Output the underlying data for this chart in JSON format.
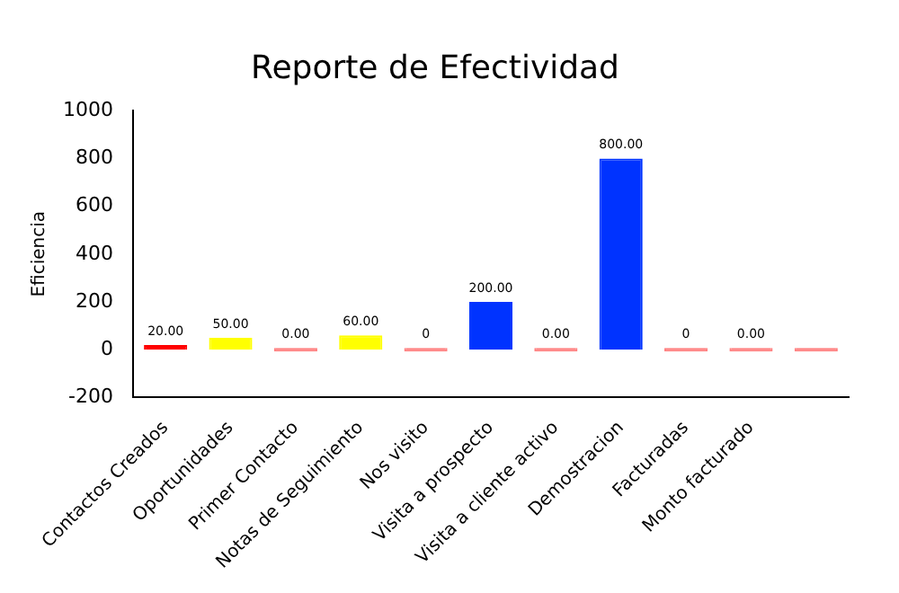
{
  "chart_data": {
    "type": "bar",
    "title": "Reporte de Efectividad",
    "ylabel": "Eficiencia",
    "categories": [
      "Contactos Creados",
      "Oportunidades",
      "Primer Contacto",
      "Notas de Seguimiento",
      "Nos visito",
      "Visita a prospecto",
      "Visita a cliente activo",
      "Demostracion",
      "Facturadas",
      "Monto facturado",
      null
    ],
    "values": [
      20,
      50,
      0,
      60,
      0,
      200,
      0,
      800,
      0,
      0,
      0
    ],
    "colors": [
      "#ff0000",
      "#ffff00",
      "#ff8080",
      "#ffff00",
      "#ff8080",
      "#0033ff",
      "#ff8080",
      "#0033ff",
      "#ff8080",
      "#ff8080",
      "#ff8080"
    ],
    "value_labels": [
      "20.00",
      "50.00",
      "0.00",
      "60.00",
      "0",
      "200.00",
      "0.00",
      "800.00",
      "0",
      "0.00",
      null
    ],
    "ylim": [
      -200,
      1000
    ],
    "yticks": [
      -200,
      0,
      200,
      400,
      600,
      800,
      1000
    ],
    "grid": false,
    "legend": false
  }
}
